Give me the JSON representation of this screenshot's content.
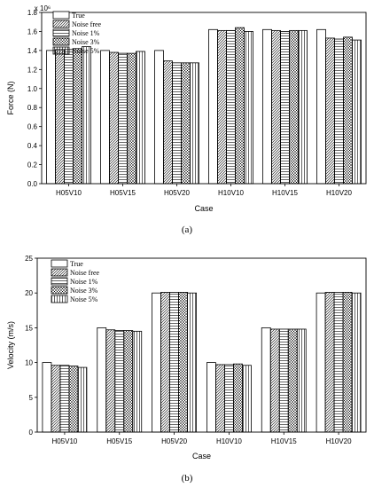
{
  "chart_data": [
    {
      "type": "bar",
      "panel": "(a)",
      "xlabel": "Case",
      "ylabel": "Force (N)",
      "scale_label": "x 10⁶",
      "ylim": [
        0,
        1.8
      ],
      "yticks": [
        "0.0",
        "0.2",
        "0.4",
        "0.6",
        "0.8",
        "1.0",
        "1.2",
        "1.4",
        "1.6",
        "1.8"
      ],
      "categories": [
        "H05V10",
        "H05V15",
        "H05V20",
        "H10V10",
        "H10V15",
        "H10V20"
      ],
      "legend_position": "top-left",
      "series": [
        {
          "name": "True",
          "pattern": "empty",
          "values": [
            1.4,
            1.4,
            1.4,
            1.62,
            1.62,
            1.62
          ]
        },
        {
          "name": "Noise free",
          "pattern": "diag",
          "values": [
            1.41,
            1.38,
            1.29,
            1.61,
            1.61,
            1.53
          ]
        },
        {
          "name": "Noise 1%",
          "pattern": "horiz",
          "values": [
            1.41,
            1.37,
            1.27,
            1.61,
            1.6,
            1.52
          ]
        },
        {
          "name": "Noise 3%",
          "pattern": "cross",
          "values": [
            1.42,
            1.37,
            1.27,
            1.64,
            1.61,
            1.54
          ]
        },
        {
          "name": "Noise 5%",
          "pattern": "vert",
          "values": [
            1.44,
            1.39,
            1.27,
            1.6,
            1.61,
            1.51
          ]
        }
      ]
    },
    {
      "type": "bar",
      "panel": "(b)",
      "xlabel": "Case",
      "ylabel": "Velocity (m/s)",
      "ylim": [
        0,
        25
      ],
      "yticks": [
        "0",
        "5",
        "10",
        "15",
        "20",
        "25"
      ],
      "categories": [
        "H05V10",
        "H05V15",
        "H05V20",
        "H10V10",
        "H10V15",
        "H10V20"
      ],
      "legend_position": "top-left",
      "series": [
        {
          "name": "True",
          "pattern": "empty",
          "values": [
            10.0,
            15.0,
            20.0,
            10.0,
            15.0,
            20.0
          ]
        },
        {
          "name": "Noise free",
          "pattern": "diag",
          "values": [
            9.6,
            14.7,
            20.1,
            9.7,
            14.8,
            20.1
          ]
        },
        {
          "name": "Noise 1%",
          "pattern": "horiz",
          "values": [
            9.6,
            14.6,
            20.1,
            9.7,
            14.8,
            20.1
          ]
        },
        {
          "name": "Noise 3%",
          "pattern": "cross",
          "values": [
            9.5,
            14.6,
            20.1,
            9.8,
            14.8,
            20.1
          ]
        },
        {
          "name": "Noise 5%",
          "pattern": "vert",
          "values": [
            9.3,
            14.5,
            20.0,
            9.6,
            14.8,
            20.0
          ]
        }
      ]
    }
  ]
}
